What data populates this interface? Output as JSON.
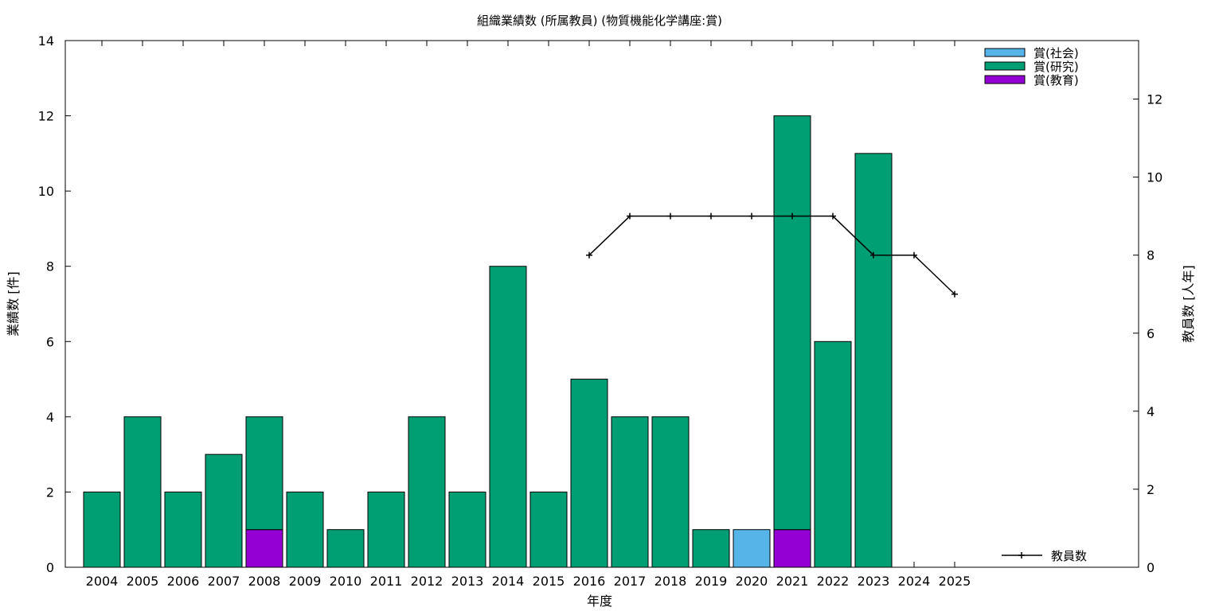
{
  "chart_data": {
    "type": "bar",
    "title": "組織業績数 (所属教員) (物質機能化学講座:賞)",
    "xlabel": "年度",
    "ylabel": "業績数 [件]",
    "y2label": "教員数 [人年]",
    "categories": [
      "2004",
      "2005",
      "2006",
      "2007",
      "2008",
      "2009",
      "2010",
      "2011",
      "2012",
      "2013",
      "2014",
      "2015",
      "2016",
      "2017",
      "2018",
      "2019",
      "2020",
      "2021",
      "2022",
      "2023",
      "2024",
      "2025"
    ],
    "stacked": true,
    "ylim": [
      0,
      14
    ],
    "y2lim": [
      0,
      13.5
    ],
    "yticks": [
      0,
      2,
      4,
      6,
      8,
      10,
      12,
      14
    ],
    "y2ticks": [
      0,
      2,
      4,
      6,
      8,
      10,
      12
    ],
    "grid": false,
    "legend_position": "top-right",
    "series": [
      {
        "name": "賞(社会)",
        "color": "#56b4e9",
        "values": [
          0,
          0,
          0,
          0,
          0,
          0,
          0,
          0,
          0,
          0,
          0,
          0,
          0,
          0,
          0,
          0,
          1,
          0,
          0,
          0,
          0,
          0
        ]
      },
      {
        "name": "賞(研究)",
        "color": "#009e73",
        "values": [
          2,
          4,
          2,
          3,
          3,
          2,
          1,
          2,
          4,
          2,
          8,
          2,
          5,
          4,
          4,
          1,
          0,
          11,
          6,
          11,
          0,
          0
        ]
      },
      {
        "name": "賞(教育)",
        "color": "#9400d3",
        "values": [
          0,
          0,
          0,
          0,
          1,
          0,
          0,
          0,
          0,
          0,
          0,
          0,
          0,
          0,
          0,
          0,
          0,
          1,
          0,
          0,
          0,
          0
        ]
      }
    ],
    "line_series": {
      "name": "教員数",
      "axis": "right",
      "color": "#000000",
      "x": [
        "2016",
        "2017",
        "2018",
        "2019",
        "2020",
        "2021",
        "2022",
        "2023",
        "2024",
        "2025"
      ],
      "values": [
        8,
        9,
        9,
        9,
        9,
        9,
        9,
        8,
        8,
        7
      ]
    }
  }
}
